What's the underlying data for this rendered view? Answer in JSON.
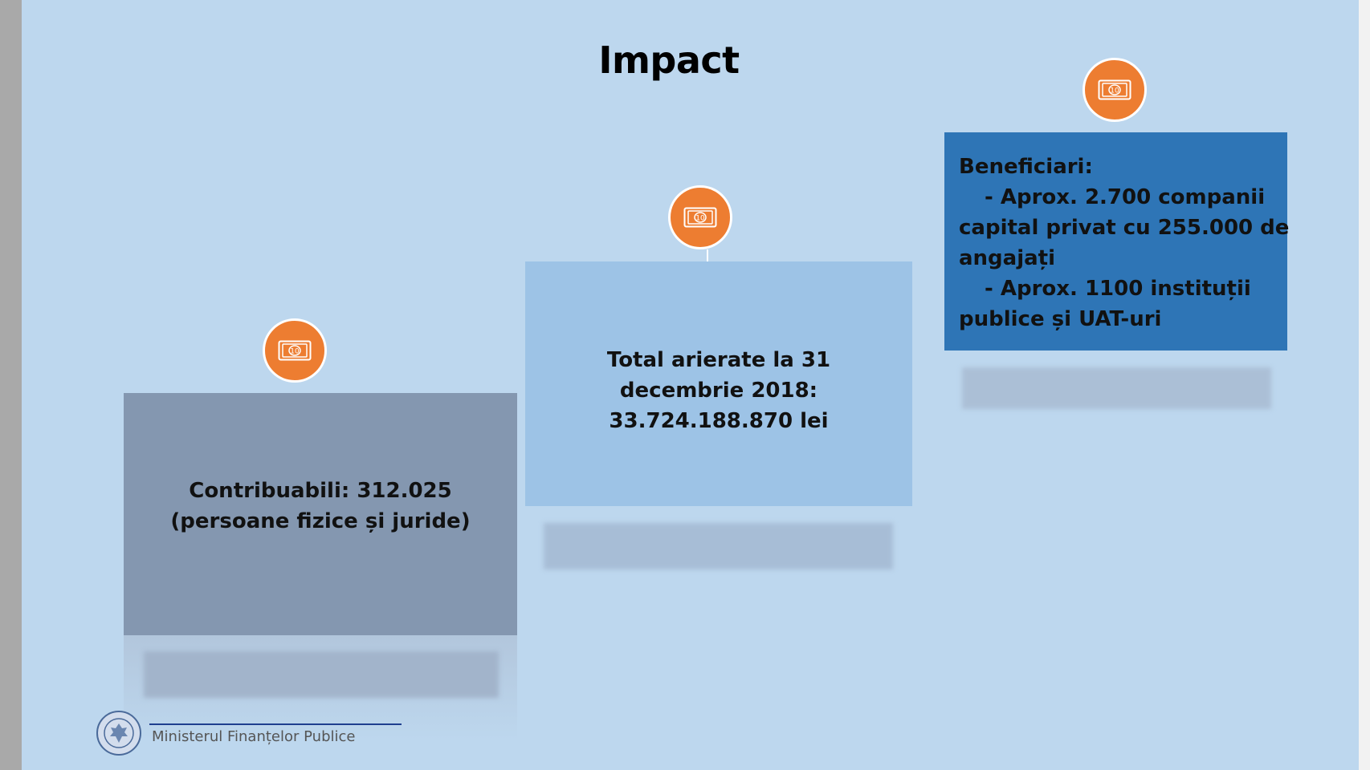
{
  "slide": {
    "title": "Impact",
    "boxes": [
      {
        "text": "Contribuabili: 312.025 (persoane fizice și juride)",
        "color": "#8497b0",
        "icon": "money-bill-icon"
      },
      {
        "text": "Total arierate la 31 decembrie 2018: 33.724.188.870 lei",
        "color": "#9dc3e6",
        "icon": "money-bill-icon"
      },
      {
        "heading": "Beneficiari:",
        "lines": [
          "- Aprox. 2.700 companii",
          "capital privat cu 255.000 de",
          "angajați",
          "- Aprox. 1100 instituții",
          "publice și UAT-uri"
        ],
        "color": "#2e75b6",
        "icon": "money-bill-icon"
      }
    ],
    "accent_color": "#ed7d31",
    "background_color": "#bdd7ee"
  },
  "footer": {
    "ministry": "Ministerul Finanțelor Publice",
    "logo": "ministry-seal-icon"
  }
}
